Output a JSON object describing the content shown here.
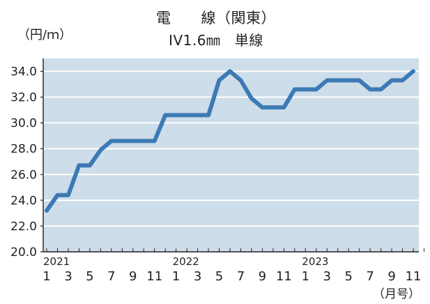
{
  "title_line1": "電　　線（関東）",
  "title_line2": "IV1.6㎜　単線",
  "y_unit": "（円/ｍ）",
  "x_unit": "（月号）",
  "colors": {
    "plot_bg": "#cddde9",
    "line": "#3d7ab5",
    "grid": "#ffffff",
    "axis": "#231f20",
    "text": "#231f20"
  },
  "chart_data": {
    "type": "line",
    "title": "電　　線（関東）  IV1.6㎜　単線",
    "xlabel": "（月号）",
    "ylabel": "（円/ｍ）",
    "ylim": [
      20.0,
      35.0
    ],
    "y_ticks": [
      "20.0",
      "22.0",
      "24.0",
      "26.0",
      "28.0",
      "30.0",
      "32.0",
      "34.0"
    ],
    "y_tick_values": [
      20,
      22,
      24,
      26,
      28,
      30,
      32,
      34
    ],
    "x_month_labels": [
      "1",
      "3",
      "5",
      "7",
      "9",
      "11",
      "1",
      "3",
      "5",
      "7",
      "9",
      "11",
      "1",
      "3",
      "5",
      "7",
      "9",
      "11"
    ],
    "x_month_label_indices": [
      0,
      2,
      4,
      6,
      8,
      10,
      12,
      14,
      16,
      18,
      20,
      22,
      24,
      26,
      28,
      30,
      32,
      34
    ],
    "year_labels": [
      "2021",
      "2022",
      "2023"
    ],
    "year_label_indices": [
      0,
      12,
      24
    ],
    "x_count": 36,
    "series": [
      {
        "values": [
          23.2,
          24.4,
          24.4,
          26.7,
          26.7,
          27.9,
          28.6,
          28.6,
          28.6,
          28.6,
          28.6,
          30.6,
          30.6,
          30.6,
          30.6,
          30.6,
          33.3,
          34.0,
          33.3,
          31.9,
          31.2,
          31.2,
          31.2,
          32.6,
          32.6,
          32.6,
          33.3,
          33.3,
          33.3,
          33.3,
          32.6,
          32.6,
          33.3,
          33.3,
          34.0
        ]
      }
    ]
  }
}
